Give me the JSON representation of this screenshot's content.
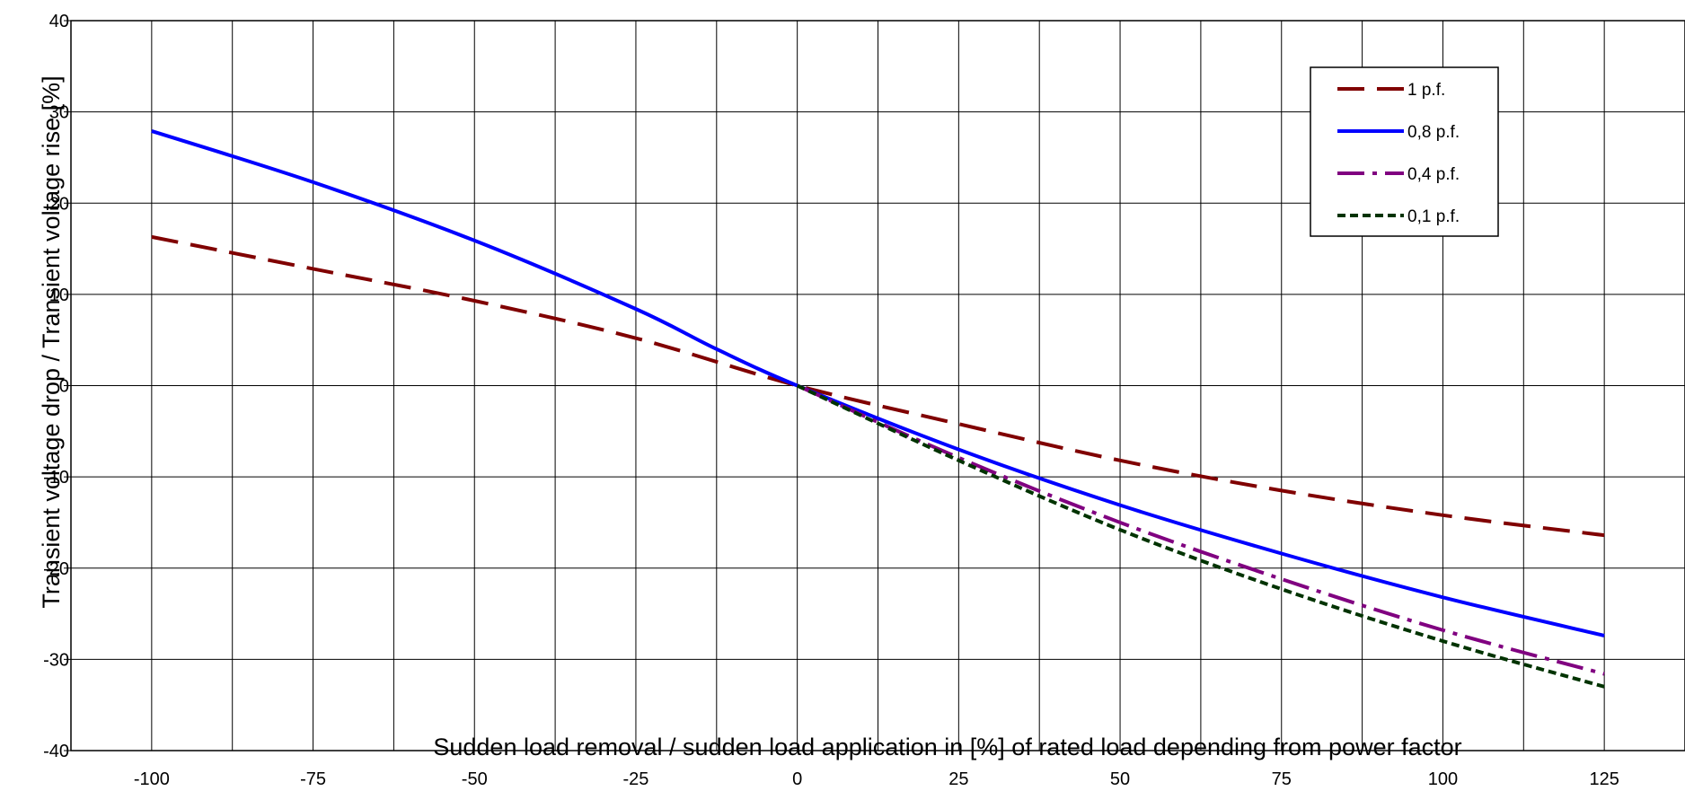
{
  "chart_data": {
    "type": "line",
    "xlabel": "Sudden load removal    /   sudden load application  in [%] of rated load depending from power factor",
    "ylabel": "Transient voltage drop / Transient voltage rise [%]",
    "xlim": [
      -112.5,
      137.5
    ],
    "ylim": [
      -40,
      40
    ],
    "x_ticks": [
      -100,
      -75,
      -50,
      -25,
      0,
      25,
      50,
      75,
      100,
      125
    ],
    "y_ticks": [
      40,
      30,
      20,
      10,
      0,
      -10,
      -20,
      -30,
      -40
    ],
    "grid": true,
    "legend_position": "top-right",
    "series": [
      {
        "name": "1 p.f.",
        "color": "#800000",
        "dash": "long-dash",
        "points": [
          [
            -100,
            16.3
          ],
          [
            -75,
            12.8
          ],
          [
            -50,
            9.3
          ],
          [
            -25,
            5.2
          ],
          [
            0,
            0
          ],
          [
            25,
            -4.2
          ],
          [
            50,
            -8.2
          ],
          [
            75,
            -11.5
          ],
          [
            100,
            -14.2
          ],
          [
            125,
            -16.4
          ]
        ]
      },
      {
        "name": "0,8 p.f.",
        "color": "#0000ff",
        "dash": "solid",
        "points": [
          [
            -100,
            27.9
          ],
          [
            -75,
            22.3
          ],
          [
            -50,
            15.9
          ],
          [
            -25,
            8.4
          ],
          [
            -12.5,
            4.0
          ],
          [
            0,
            0
          ],
          [
            25,
            -7.0
          ],
          [
            50,
            -13.1
          ],
          [
            75,
            -18.4
          ],
          [
            100,
            -23.2
          ],
          [
            125,
            -27.4
          ]
        ]
      },
      {
        "name": "0,4 p.f.",
        "color": "#800080",
        "dash": "dash-dot",
        "points": [
          [
            0,
            0
          ],
          [
            25,
            -7.9
          ],
          [
            50,
            -15.0
          ],
          [
            75,
            -21.2
          ],
          [
            100,
            -26.8
          ],
          [
            125,
            -31.6
          ]
        ]
      },
      {
        "name": "0,1 p.f.",
        "color": "#003300",
        "dash": "short-dash",
        "points": [
          [
            0,
            0
          ],
          [
            25,
            -8.2
          ],
          [
            50,
            -15.8
          ],
          [
            75,
            -22.3
          ],
          [
            100,
            -28.0
          ],
          [
            125,
            -33.0
          ]
        ]
      }
    ]
  }
}
